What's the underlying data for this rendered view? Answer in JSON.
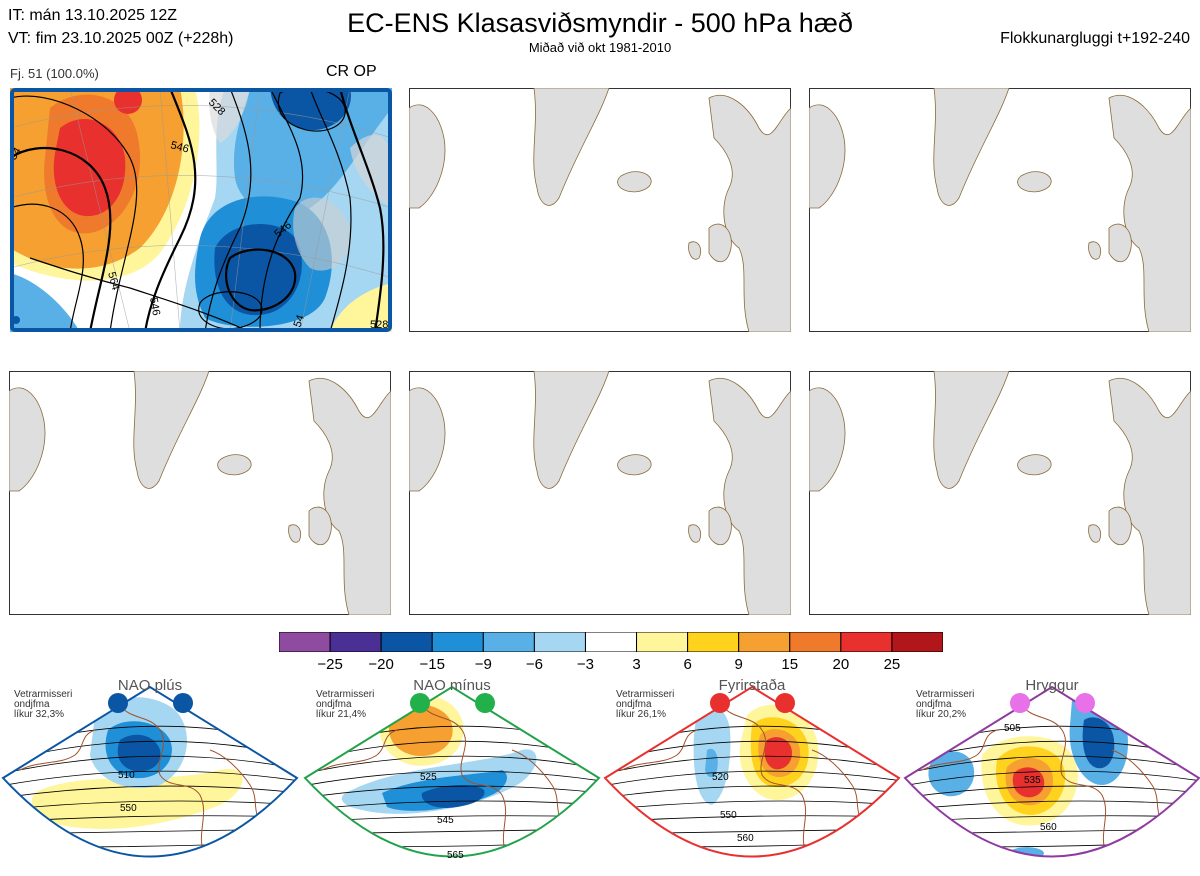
{
  "header": {
    "it_line": "IT: mán 13.10.2025 12Z",
    "vt_line": "VT: fim 23.10.2025 00Z  (+228h)",
    "title": "EC-ENS Klasasviðsmyndir - 500 hPa hæð",
    "subtitle": "Miðað við okt 1981-2010",
    "window": "Flokkunargluggi t+192-240"
  },
  "panels": [
    {
      "member_label": "Fj. 51 (100.0%)",
      "tag": "CR OP",
      "contour_labels": [
        "528",
        "546",
        "534",
        "546",
        "564",
        "546",
        "54",
        "528"
      ]
    },
    {
      "member_label": ""
    },
    {
      "member_label": ""
    },
    {
      "member_label": ""
    },
    {
      "member_label": ""
    },
    {
      "member_label": ""
    }
  ],
  "colorbar": {
    "ticks": [
      "−25",
      "−20",
      "−15",
      "−9",
      "−6",
      "−3",
      "3",
      "6",
      "9",
      "15",
      "20",
      "25"
    ],
    "colors": [
      "#8e4ba0",
      "#4a2f95",
      "#0b56a4",
      "#1f8fd8",
      "#58b0e6",
      "#a6d7f2",
      "#ffffff",
      "#fff59a",
      "#ffd21e",
      "#f5a030",
      "#ef7a2c",
      "#e8302e",
      "#b0161a"
    ]
  },
  "regimes": [
    {
      "name": "NAO plús",
      "info1": "Vetrarmisseri",
      "info2": "ondjfma",
      "info3": "líkur 32,3%",
      "labels": [
        "510",
        "550"
      ],
      "color": "#0b56a4",
      "dot_color": "#0b56a4"
    },
    {
      "name": "NAO mínus",
      "info1": "Vetrarmisseri",
      "info2": "ondjfma",
      "info3": "líkur 21,4%",
      "labels": [
        "525",
        "545",
        "565"
      ],
      "color": "#22a24a",
      "dot_color": "#22b04a"
    },
    {
      "name": "Fyrirstaða",
      "info1": "Vetrarmisseri",
      "info2": "ondjfma",
      "info3": "líkur 26,1%",
      "labels": [
        "520",
        "550",
        "560"
      ],
      "color": "#e8302e",
      "dot_color": "#e8302e"
    },
    {
      "name": "Hryggur",
      "info1": "Vetrarmisseri",
      "info2": "ondjfma",
      "info3": "líkur 20,2%",
      "labels": [
        "505",
        "535",
        "560"
      ],
      "color": "#8e3aa0",
      "dot_color": "#e870e8"
    }
  ]
}
